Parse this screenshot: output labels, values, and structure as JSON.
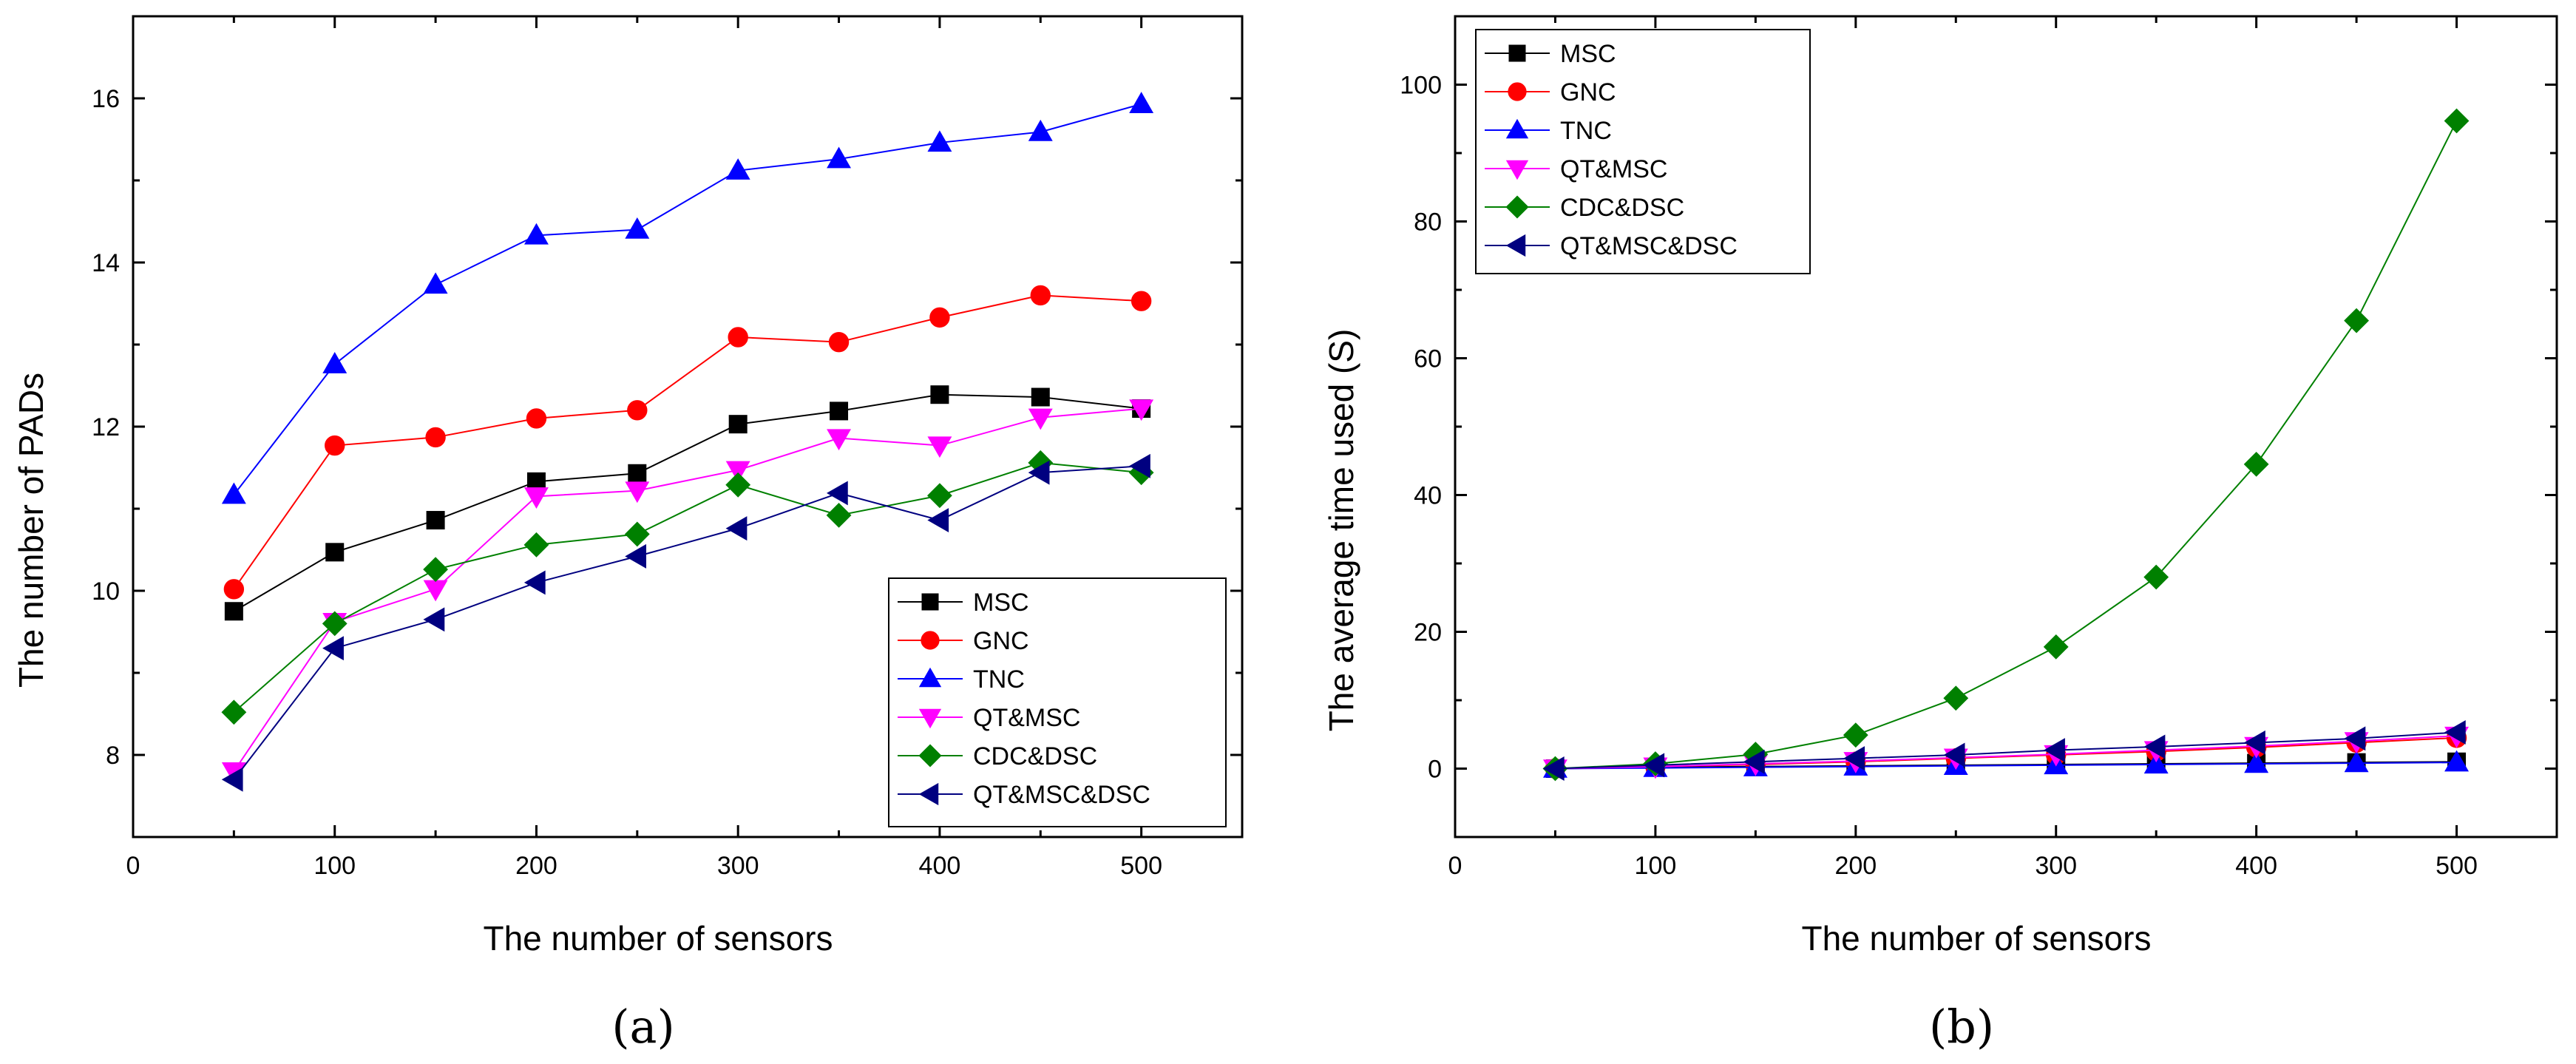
{
  "chart_data": [
    {
      "type": "line",
      "xlabel": "The number of sensors",
      "ylabel": "The number of PADs",
      "caption": "(a)",
      "x": [
        50,
        100,
        150,
        200,
        250,
        300,
        350,
        400,
        450,
        500
      ],
      "xlim": [
        0,
        550
      ],
      "ylim": [
        7,
        17
      ],
      "xticks": [
        0,
        100,
        200,
        300,
        400,
        500
      ],
      "yticks": [
        8,
        10,
        12,
        14,
        16
      ],
      "legend_position": "bottom-right",
      "series": [
        {
          "name": "MSC",
          "color": "#000000",
          "marker": "square",
          "values": [
            9.75,
            10.47,
            10.86,
            11.33,
            11.43,
            12.03,
            12.19,
            12.39,
            12.36,
            12.22
          ]
        },
        {
          "name": "GNC",
          "color": "#ff0000",
          "marker": "circle",
          "values": [
            10.02,
            11.77,
            11.87,
            12.1,
            12.2,
            13.09,
            13.03,
            13.33,
            13.6,
            13.53
          ]
        },
        {
          "name": "TNC",
          "color": "#0000ff",
          "marker": "triangle-up",
          "values": [
            11.17,
            12.76,
            13.73,
            14.33,
            14.4,
            15.12,
            15.26,
            15.46,
            15.59,
            15.93
          ]
        },
        {
          "name": "QT&MSC",
          "color": "#ff00ff",
          "marker": "triangle-down",
          "values": [
            7.8,
            9.62,
            10.02,
            11.15,
            11.22,
            11.47,
            11.86,
            11.77,
            12.11,
            12.22
          ]
        },
        {
          "name": "CDC&DSC",
          "color": "#008000",
          "marker": "diamond",
          "values": [
            8.52,
            9.6,
            10.26,
            10.56,
            10.69,
            11.29,
            10.92,
            11.16,
            11.56,
            11.44
          ]
        },
        {
          "name": "QT&MSC&DSC",
          "color": "#000080",
          "marker": "triangle-left",
          "values": [
            7.7,
            9.3,
            9.65,
            10.1,
            10.42,
            10.76,
            11.19,
            10.86,
            11.44,
            11.52
          ]
        }
      ]
    },
    {
      "type": "line",
      "xlabel": "The number of sensors",
      "ylabel": "The average time used (S)",
      "caption": "(b)",
      "x": [
        50,
        100,
        150,
        200,
        250,
        300,
        350,
        400,
        450,
        500
      ],
      "xlim": [
        0,
        550
      ],
      "ylim": [
        -10,
        110
      ],
      "xticks": [
        0,
        100,
        200,
        300,
        400,
        500
      ],
      "yticks": [
        0,
        20,
        40,
        60,
        80,
        100
      ],
      "legend_position": "top-left",
      "series": [
        {
          "name": "MSC",
          "color": "#000000",
          "marker": "square",
          "values": [
            0.0,
            0.2,
            0.3,
            0.4,
            0.5,
            0.6,
            0.7,
            0.8,
            0.9,
            1.0
          ]
        },
        {
          "name": "GNC",
          "color": "#ff0000",
          "marker": "circle",
          "values": [
            0.0,
            0.3,
            0.6,
            1.0,
            1.5,
            2.0,
            2.5,
            3.1,
            3.8,
            4.5
          ]
        },
        {
          "name": "TNC",
          "color": "#0000ff",
          "marker": "triangle-up",
          "values": [
            0.0,
            0.1,
            0.2,
            0.3,
            0.4,
            0.5,
            0.6,
            0.7,
            0.8,
            0.9
          ]
        },
        {
          "name": "QT&MSC",
          "color": "#ff00ff",
          "marker": "triangle-down",
          "values": [
            0.0,
            0.3,
            0.7,
            1.1,
            1.6,
            2.1,
            2.7,
            3.3,
            4.0,
            4.8
          ]
        },
        {
          "name": "CDC&DSC",
          "color": "#008000",
          "marker": "diamond",
          "values": [
            0.0,
            0.7,
            2.1,
            4.9,
            10.3,
            17.8,
            28.0,
            44.5,
            65.5,
            94.7
          ]
        },
        {
          "name": "QT&MSC&DSC",
          "color": "#000080",
          "marker": "triangle-left",
          "values": [
            0.0,
            0.5,
            1.0,
            1.5,
            2.0,
            2.7,
            3.2,
            3.8,
            4.4,
            5.3
          ]
        }
      ]
    }
  ]
}
